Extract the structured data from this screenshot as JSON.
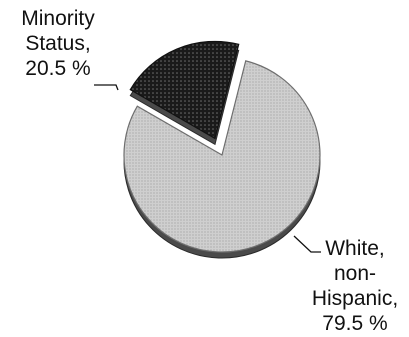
{
  "chart_data": {
    "type": "pie",
    "exploded": "Minority Status",
    "slices": [
      {
        "name": "Minority Status",
        "value": 20.5,
        "label_lines": [
          "Minority",
          "Status,",
          "20.5 %"
        ],
        "color": "#1a1a1a",
        "dot_color": "#707070",
        "edge_color": "#111111"
      },
      {
        "name": "White, non-Hispanic",
        "value": 79.5,
        "label_lines": [
          "White,",
          "non-",
          "Hispanic,",
          "79.5 %"
        ],
        "color": "#cfcfcf",
        "dot_color": "#9a9a9a",
        "edge_color": "#6e6e6e"
      }
    ]
  }
}
